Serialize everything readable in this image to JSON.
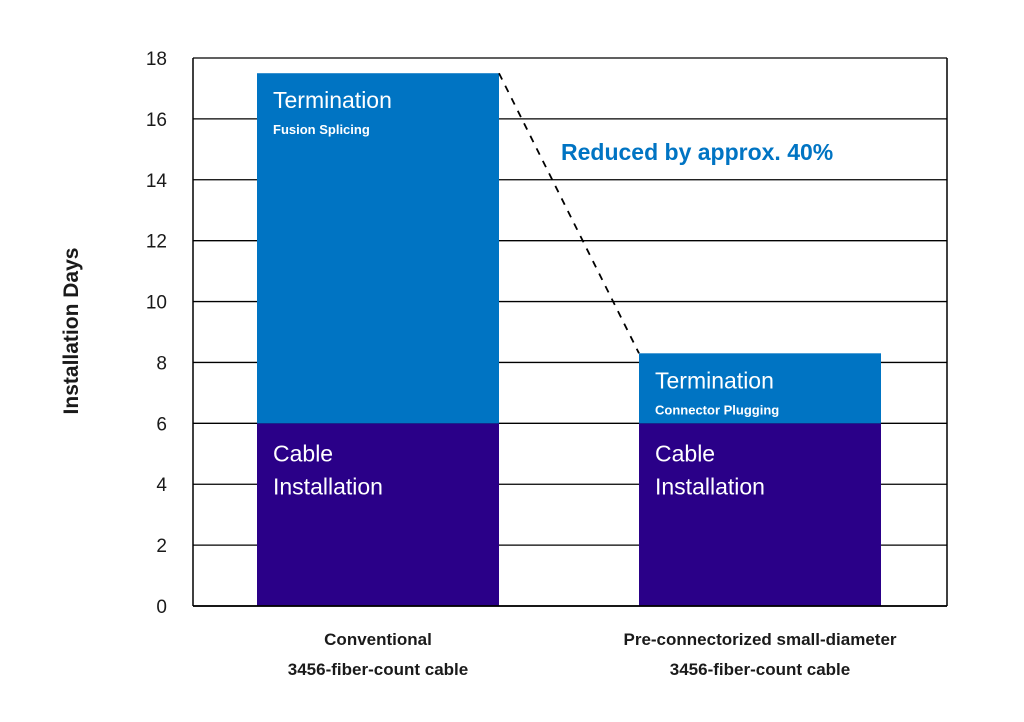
{
  "chart_data": {
    "type": "bar",
    "stacked": true,
    "ylabel": "Installation Days",
    "xlabel": "",
    "ylim": [
      0,
      18
    ],
    "y_ticks": [
      0,
      2,
      4,
      6,
      8,
      10,
      12,
      14,
      16,
      18
    ],
    "grid": true,
    "categories": [
      [
        "Conventional",
        "3456-fiber-count cable"
      ],
      [
        "Pre-connectorized small-diameter",
        "3456-fiber-count cable"
      ]
    ],
    "series": [
      {
        "name": "Cable Installation",
        "values": [
          6,
          6
        ],
        "color": "#2a0088",
        "segment_labels": [
          [
            "Cable",
            "Installation"
          ],
          [
            "Cable",
            "Installation"
          ]
        ],
        "segment_sublabels": [
          "",
          ""
        ]
      },
      {
        "values": [
          11.5,
          2.3
        ],
        "color": "#0074c3",
        "segment_labels": [
          [
            "Termination"
          ],
          [
            "Termination"
          ]
        ],
        "segment_sublabels": [
          "Fusion Splicing",
          "Connector Plugging"
        ]
      }
    ],
    "annotation": {
      "text": "Reduced by approx. 40%",
      "color": "#0074c3"
    }
  }
}
